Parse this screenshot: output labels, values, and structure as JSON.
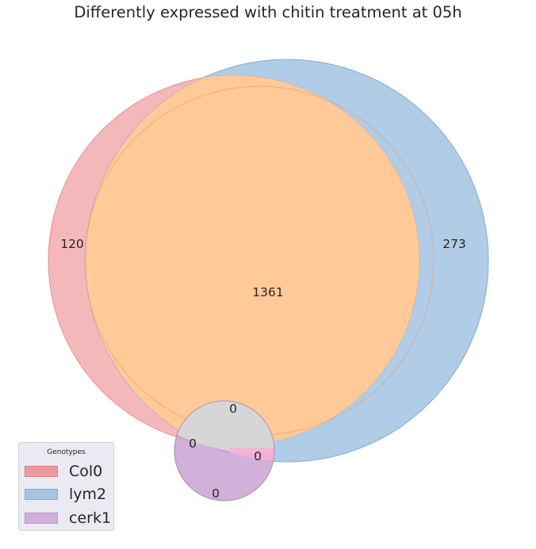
{
  "title": "Differently expressed with chitin treatment at 05h",
  "chart_data": {
    "type": "venn",
    "title": "Differently expressed with chitin treatment at 05h",
    "sets": [
      {
        "name": "Col0",
        "color": "#e8888d"
      },
      {
        "name": "lym2",
        "color": "#8db6db"
      },
      {
        "name": "cerk1",
        "color": "#b88bc4"
      }
    ],
    "regions": [
      {
        "sets": [
          "Col0"
        ],
        "value": 120
      },
      {
        "sets": [
          "lym2"
        ],
        "value": 273
      },
      {
        "sets": [
          "Col0",
          "lym2"
        ],
        "value": 1361
      },
      {
        "sets": [
          "Col0",
          "lym2",
          "cerk1"
        ],
        "value": 0
      },
      {
        "sets": [
          "Col0",
          "cerk1"
        ],
        "value": 0
      },
      {
        "sets": [
          "lym2",
          "cerk1"
        ],
        "value": 0
      },
      {
        "sets": [
          "cerk1"
        ],
        "value": 0
      }
    ]
  },
  "legend": {
    "title": "Genotypes",
    "items": [
      {
        "label": "Col0",
        "color": "#e8888d"
      },
      {
        "label": "lym2",
        "color": "#8db6db"
      },
      {
        "label": "cerk1",
        "color": "#b88bc4"
      }
    ]
  }
}
